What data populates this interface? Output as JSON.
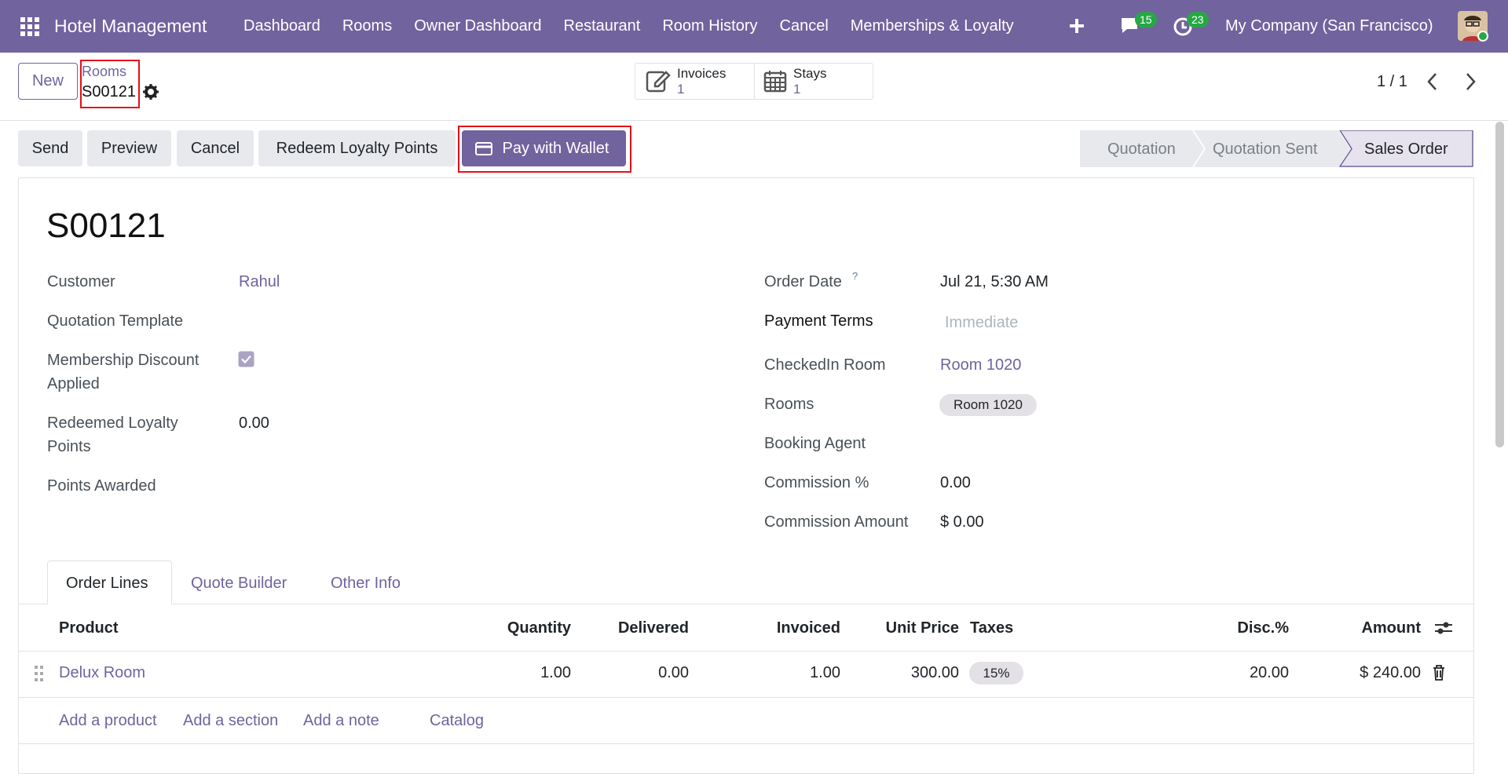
{
  "navbar": {
    "app": "Hotel Management",
    "menu": [
      "Dashboard",
      "Rooms",
      "Owner Dashboard",
      "Restaurant",
      "Room History",
      "Cancel",
      "Memberships & Loyalty"
    ],
    "messages_badge": "15",
    "activities_badge": "23",
    "company": "My Company (San Francisco)"
  },
  "control_panel": {
    "new": "New",
    "breadcrumb": "Rooms",
    "record": "S00121",
    "smart_buttons": [
      {
        "label": "Invoices",
        "value": "1"
      },
      {
        "label": "Stays",
        "value": "1"
      }
    ],
    "pager": "1 / 1"
  },
  "actions": [
    "Send",
    "Preview",
    "Cancel",
    "Redeem Loyalty Points",
    "Pay with Wallet"
  ],
  "statusbar": [
    "Quotation",
    "Quotation Sent",
    "Sales Order"
  ],
  "form": {
    "title": "S00121",
    "left_fields": [
      {
        "label": "Customer",
        "value": "Rahul"
      },
      {
        "label": "Quotation Template"
      },
      {
        "label": "Membership Discount Applied",
        "checked": true
      },
      {
        "label": "Redeemed Loyalty Points",
        "value": "0.00"
      },
      {
        "label": "Points Awarded"
      }
    ],
    "right_fields": [
      {
        "label": "Order Date",
        "help": "?",
        "value": "Jul 21, 5:30 AM"
      },
      {
        "label": "Payment Terms",
        "placeholder": "Immediate"
      },
      {
        "label": "CheckedIn Room",
        "value": "Room 1020"
      },
      {
        "label": "Rooms",
        "tag": "Room 1020"
      },
      {
        "label": "Booking Agent"
      },
      {
        "label": "Commission %",
        "value": "0.00"
      },
      {
        "label": "Commission Amount",
        "value": "$ 0.00"
      }
    ],
    "tabs": [
      "Order Lines",
      "Quote Builder",
      "Other Info"
    ],
    "table": {
      "headers": [
        "Product",
        "Quantity",
        "Delivered",
        "Invoiced",
        "Unit Price",
        "Taxes",
        "Disc.%",
        "Amount"
      ],
      "rows": [
        [
          "Delux Room",
          "1.00",
          "0.00",
          "1.00",
          "300.00",
          "15%",
          "20.00",
          "$ 240.00"
        ]
      ]
    },
    "add_links": [
      "Add a product",
      "Add a section",
      "Add a note",
      "Catalog"
    ]
  }
}
